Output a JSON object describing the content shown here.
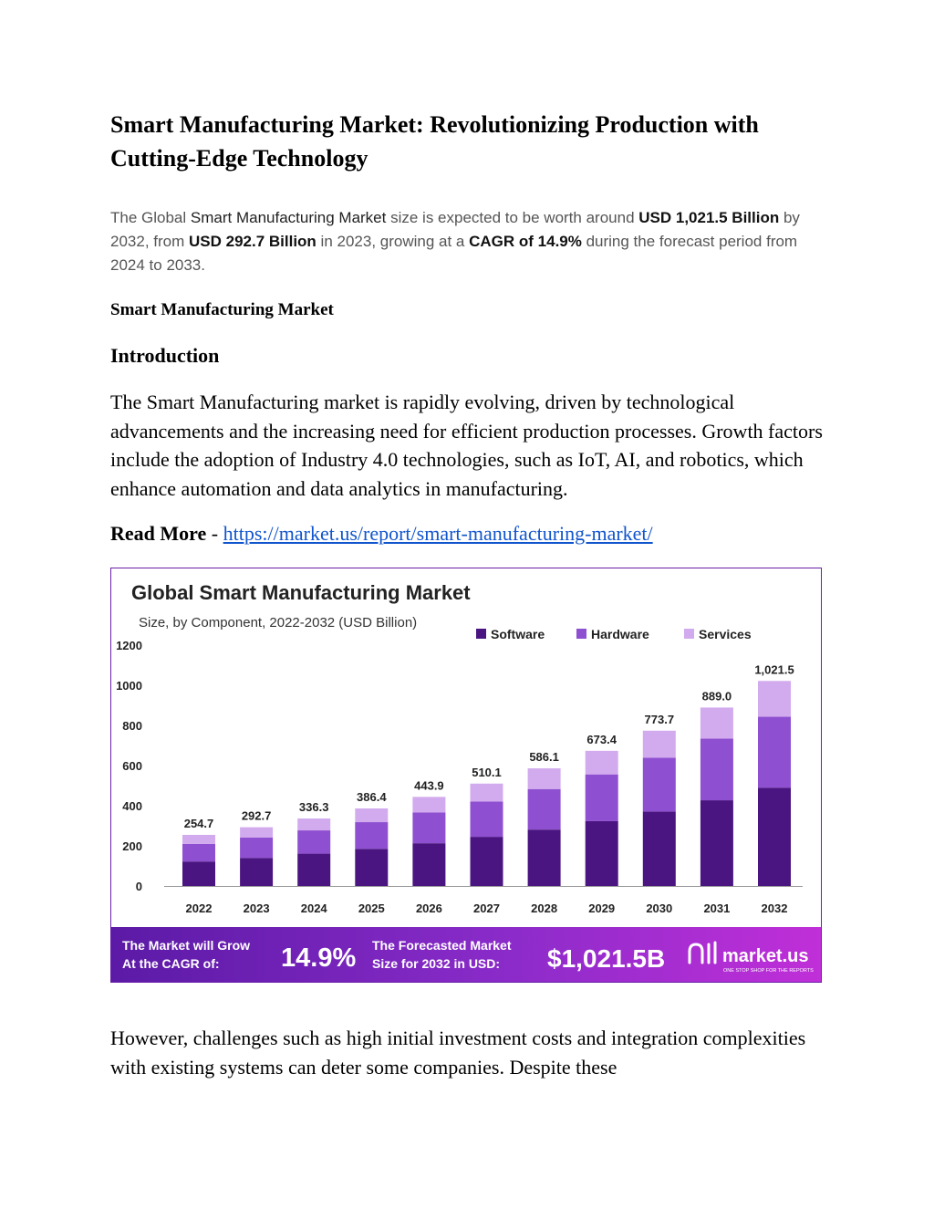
{
  "title": "Smart Manufacturing Market: Revolutionizing Production with Cutting-Edge Technology",
  "summary": {
    "p1": "The Global ",
    "market_name": "Smart Manufacturing Market",
    "p2": " size is expected to be worth around ",
    "value_2032": "USD 1,021.5 Billion",
    "p3": " by 2032, from ",
    "value_2023": "USD 292.7 Billion",
    "p4": " in 2023, growing at a ",
    "cagr": "CAGR of 14.9%",
    "p5": " during the forecast period from 2024 to 2033."
  },
  "subheading": "Smart Manufacturing Market",
  "intro_heading": "Introduction",
  "intro_text": "The Smart Manufacturing market is rapidly evolving, driven by technological advancements and the increasing need for efficient production processes. Growth factors include the adoption of Industry 4.0 technologies, such as IoT, AI, and robotics, which enhance automation and data analytics in manufacturing.",
  "read_more": {
    "label": "Read More",
    "separator": " - ",
    "url": "https://market.us/report/smart-manufacturing-market/"
  },
  "chart_data": {
    "type": "bar",
    "stacked": true,
    "title": "Global Smart Manufacturing Market",
    "subtitle": "Size, by Component, 2022-2032 (USD Billion)",
    "categories": [
      "2022",
      "2023",
      "2024",
      "2025",
      "2026",
      "2027",
      "2028",
      "2029",
      "2030",
      "2031",
      "2032"
    ],
    "totals_labels": [
      "254.7",
      "292.7",
      "336.3",
      "386.4",
      "443.9",
      "510.1",
      "586.1",
      "673.4",
      "773.7",
      "889.0",
      "1,021.5"
    ],
    "series": [
      {
        "name": "Software",
        "color": "#4a1580",
        "values": [
          122,
          140,
          161,
          185,
          213,
          245,
          281,
          323,
          371,
          427,
          490
        ]
      },
      {
        "name": "Hardware",
        "color": "#8e4fd0",
        "values": [
          88,
          101,
          116,
          133,
          153,
          176,
          202,
          233,
          268,
          307,
          353
        ]
      },
      {
        "name": "Services",
        "color": "#d2abee",
        "values": [
          44.7,
          51.7,
          59.3,
          68.4,
          77.9,
          89.1,
          103.1,
          117.4,
          134.7,
          155.0,
          178.5
        ]
      }
    ],
    "yticks": [
      "0",
      "200",
      "400",
      "600",
      "800",
      "1000",
      "1200"
    ],
    "ylim": [
      0,
      1200
    ],
    "legend_position": "top-right",
    "grid": false
  },
  "banner": {
    "cagr_label_1": "The Market will Grow",
    "cagr_label_2": "At the CAGR of:",
    "cagr_value": "14.9%",
    "size_label_1": "The Forecasted Market",
    "size_label_2": "Size for 2032 in USD:",
    "size_value": "$1,021.5B",
    "brand": "market.us",
    "tagline": "ONE STOP SHOP FOR THE REPORTS"
  },
  "tail_text": "However, challenges such as high initial investment costs and integration complexities with existing systems can deter some companies. Despite these"
}
